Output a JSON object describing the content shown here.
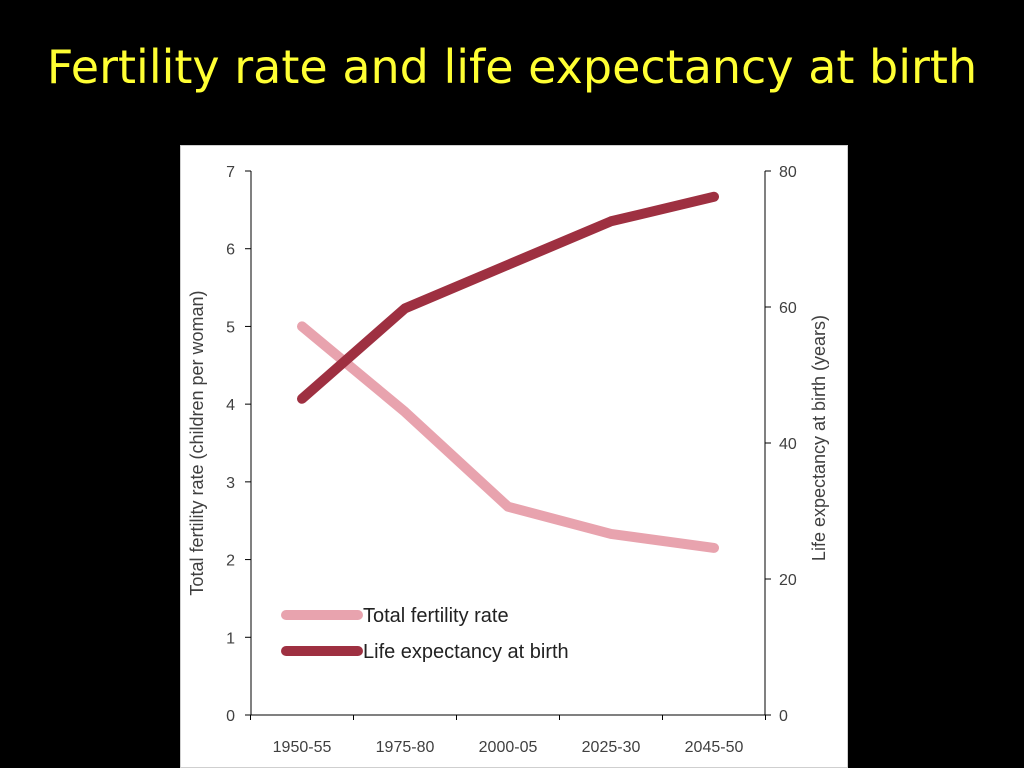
{
  "slide": {
    "title": "Fertility rate and life expectancy at birth"
  },
  "chart_data": {
    "type": "line",
    "categories": [
      "1950-55",
      "1975-80",
      "2000-05",
      "2025-30",
      "2045-50"
    ],
    "y_left": {
      "label": "Total fertility rate (children per woman)",
      "range": [
        0,
        7
      ],
      "ticks": [
        "0",
        "1",
        "2",
        "3",
        "4",
        "5",
        "6",
        "7"
      ]
    },
    "y_right": {
      "label": "Life expectancy at birth (years)",
      "range": [
        0,
        80
      ],
      "ticks": [
        "0",
        "20",
        "40",
        "60",
        "80"
      ]
    },
    "series": [
      {
        "name": "Total fertility rate",
        "axis": "left",
        "color": "#e8a3ae",
        "values": [
          5.0,
          3.9,
          2.68,
          2.33,
          2.15
        ]
      },
      {
        "name": "Life expectancy at birth",
        "axis": "right",
        "color": "#9e3041",
        "values": [
          46.5,
          59.8,
          66.2,
          72.6,
          76.2
        ]
      }
    ],
    "legend": "bottom-left",
    "grid": false
  }
}
